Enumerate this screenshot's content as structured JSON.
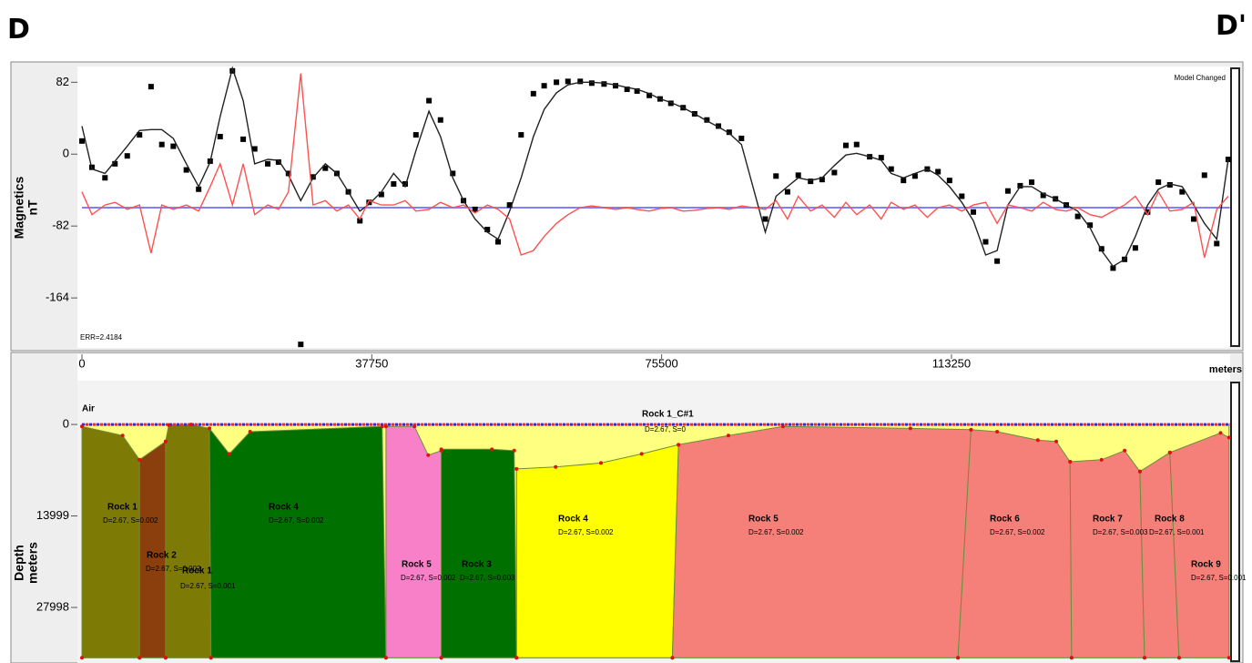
{
  "header": {
    "left": "D",
    "right": "D'"
  },
  "chart_data": [
    {
      "type": "line",
      "ylabel_lines": [
        "Magnetics",
        "nT"
      ],
      "annotations": [
        "Model Changed",
        "ERR=2.4184"
      ],
      "xlim": [
        0,
        149500
      ],
      "ylim": [
        -221,
        100
      ],
      "yticks": [
        82,
        0,
        -82,
        -164
      ],
      "x": [
        0,
        1300,
        3000,
        4300,
        5900,
        7500,
        9000,
        10400,
        11900,
        13600,
        15200,
        16700,
        18000,
        19600,
        21000,
        22500,
        24200,
        25600,
        26900,
        28500,
        30100,
        31700,
        33200,
        34700,
        36200,
        37400,
        39000,
        40600,
        42100,
        43500,
        45200,
        46700,
        48300,
        49700,
        51200,
        52800,
        54200,
        55700,
        57200,
        58800,
        60200,
        61800,
        63300,
        64900,
        66400,
        68000,
        69500,
        71000,
        72300,
        73900,
        75300,
        76700,
        78300,
        79800,
        81400,
        82900,
        84300,
        85900,
        89000,
        90400,
        91900,
        93300,
        94900,
        96400,
        98000,
        99500,
        100900,
        102600,
        104100,
        105400,
        107000,
        108500,
        110100,
        111500,
        113000,
        114600,
        116100,
        117700,
        119200,
        120600,
        122200,
        123700,
        125200,
        126800,
        128200,
        129700,
        131300,
        132800,
        134300,
        135800,
        137200,
        138800,
        140200,
        141700,
        143300,
        144800,
        146200,
        147800,
        149300
      ],
      "reference_line": {
        "value": -61,
        "color": "#7f7fff"
      },
      "series": [
        {
          "style": "points",
          "color": "#000000",
          "values": [
            15,
            -15,
            -27,
            -11,
            -2,
            22,
            77,
            11,
            9,
            -18,
            -40,
            -8,
            20,
            95,
            17,
            6,
            -11,
            -9,
            -22,
            -217,
            -26,
            -16,
            -22,
            -43,
            -76,
            -55,
            -46,
            -34,
            -34,
            22,
            61,
            39,
            -22,
            -53,
            -63,
            -86,
            -100,
            -58,
            22,
            69,
            78,
            82,
            83,
            83,
            81,
            80,
            78,
            74,
            72,
            67,
            63,
            58,
            53,
            46,
            39,
            32,
            25,
            18,
            -74,
            -25,
            -43,
            -24,
            -31,
            -29,
            -21,
            10,
            11,
            -3,
            -4,
            -17,
            -30,
            -25,
            -17,
            -20,
            -30,
            -48,
            -66,
            -100,
            -122,
            -42,
            -36,
            -32,
            -47,
            -51,
            -58,
            -71,
            -81,
            -108,
            -130,
            -120,
            -107,
            -66,
            -32,
            -35,
            -43,
            -74,
            -24,
            -102,
            -6
          ]
        },
        {
          "style": "line",
          "color": "#222222",
          "values": [
            32,
            -17,
            -22,
            -8,
            9,
            27,
            28,
            28,
            18,
            -11,
            -37,
            -9,
            43,
            98,
            61,
            -11,
            -6,
            -7,
            -24,
            -53,
            -27,
            -11,
            -22,
            -43,
            -65,
            -57,
            -43,
            -22,
            -37,
            4,
            49,
            20,
            -27,
            -53,
            -74,
            -89,
            -97,
            -65,
            -27,
            20,
            51,
            70,
            79,
            82,
            82,
            81,
            79,
            76,
            74,
            69,
            63,
            59,
            53,
            46,
            38,
            31,
            24,
            11,
            -89,
            -48,
            -37,
            -27,
            -30,
            -27,
            -13,
            -1,
            1,
            -3,
            -7,
            -22,
            -27,
            -22,
            -17,
            -24,
            -37,
            -55,
            -76,
            -115,
            -110,
            -58,
            -37,
            -37,
            -45,
            -51,
            -58,
            -65,
            -84,
            -110,
            -128,
            -120,
            -94,
            -58,
            -40,
            -34,
            -37,
            -58,
            -79,
            -97,
            -6
          ]
        },
        {
          "style": "line",
          "color": "#ff5050",
          "values": [
            -43,
            -69,
            -58,
            -55,
            -63,
            -58,
            -113,
            -58,
            -63,
            -58,
            -65,
            -37,
            -11,
            -58,
            -11,
            -69,
            -58,
            -63,
            -43,
            92,
            -58,
            -53,
            -65,
            -58,
            -74,
            -53,
            -58,
            -58,
            -53,
            -65,
            -63,
            -55,
            -61,
            -58,
            -67,
            -58,
            -63,
            -74,
            -115,
            -110,
            -94,
            -79,
            -69,
            -61,
            -59,
            -61,
            -63,
            -61,
            -63,
            -65,
            -62,
            -61,
            -65,
            -64,
            -62,
            -61,
            -63,
            -59,
            -63,
            -53,
            -74,
            -48,
            -65,
            -58,
            -72,
            -55,
            -69,
            -58,
            -74,
            -55,
            -63,
            -58,
            -72,
            -61,
            -58,
            -65,
            -58,
            -55,
            -79,
            -58,
            -61,
            -65,
            -55,
            -63,
            -65,
            -61,
            -69,
            -72,
            -65,
            -58,
            -48,
            -69,
            -43,
            -65,
            -63,
            -55,
            -118,
            -63,
            -48
          ]
        }
      ]
    },
    {
      "type": "section",
      "xlabel": "meters",
      "ylabel_lines": [
        "Depth",
        "meters"
      ],
      "air_label": "Air",
      "xlim": [
        0,
        149500
      ],
      "xticks": [
        0,
        37750,
        75500,
        113250
      ],
      "ylim": [
        -6700,
        36500
      ],
      "inverted": true,
      "yticks": [
        0,
        13999,
        27998
      ],
      "bodies": [
        {
          "name": "Rock 1_C#1",
          "props": "D=2.67, S=0",
          "color": "#ffff80",
          "x": [
            0,
            149400,
            149400,
            0
          ],
          "depth": [
            0,
            0,
            35700,
            35700
          ]
        },
        {
          "name": "Rock 1",
          "props": "D=2.67, S=0.002",
          "color": "#7d7a05",
          "x": [
            0,
            5300,
            7500,
            7500,
            0
          ],
          "depth": [
            300,
            1700,
            5400,
            35700,
            35700
          ]
        },
        {
          "name": "Rock 2",
          "props": "D=2.67, S=0.002",
          "color": "#8a3f0c",
          "x": [
            7500,
            10900,
            10900,
            7500
          ],
          "depth": [
            5400,
            2600,
            35700,
            35700
          ]
        },
        {
          "name": "Rock 1",
          "props": "D=2.67, S=0.001",
          "color": "#7d7a05",
          "x": [
            10900,
            11300,
            14200,
            16600,
            16800,
            10900
          ],
          "depth": [
            2600,
            100,
            0,
            600,
            35700,
            35700
          ]
        },
        {
          "name": "Rock 4",
          "props": "D=2.67, S=0.002",
          "color": "#007000",
          "x": [
            16600,
            19200,
            21900,
            39100,
            39600,
            16800
          ],
          "depth": [
            600,
            4500,
            1100,
            300,
            35700,
            35700
          ]
        },
        {
          "name": "Rock 5",
          "props": "D=2.67, S=0.002",
          "color": "#f780c8",
          "x": [
            39600,
            43300,
            45100,
            46800,
            46800,
            39600
          ],
          "depth": [
            300,
            300,
            4700,
            4000,
            35700,
            35700
          ]
        },
        {
          "name": "Rock 3",
          "props": "D=2.67, S=0.003",
          "color": "#007000",
          "x": [
            46800,
            53400,
            56300,
            56600,
            46800
          ],
          "depth": [
            3800,
            3800,
            4000,
            35700,
            35700
          ]
        },
        {
          "name": "Rock 4",
          "props": "D=2.67, S=0.002",
          "color": "#ffff00",
          "x": [
            56600,
            61700,
            67600,
            72900,
            77700,
            76900,
            56600
          ],
          "depth": [
            6800,
            6500,
            5900,
            4500,
            3100,
            35700,
            35700
          ]
        },
        {
          "name": "Rock 5",
          "props": "D=2.67, S=0.002",
          "color": "#f5807a",
          "x": [
            77700,
            84200,
            91300,
            107900,
            115800,
            114100,
            76900
          ],
          "depth": [
            3100,
            1700,
            300,
            600,
            800,
            35700,
            35700
          ]
        },
        {
          "name": "Rock 6",
          "props": "D=2.67, S=0.002",
          "color": "#f5807a",
          "x": [
            115800,
            119200,
            124500,
            126900,
            128700,
            128900,
            114100
          ],
          "depth": [
            800,
            1100,
            2400,
            2600,
            5700,
            35700,
            35700
          ]
        },
        {
          "name": "Rock 7",
          "props": "D=2.67, S=0.003",
          "color": "#f5807a",
          "x": [
            128700,
            132800,
            135800,
            137800,
            138400,
            128900
          ],
          "depth": [
            5700,
            5400,
            4000,
            7200,
            35700,
            35700
          ]
        },
        {
          "name": "Rock 8",
          "props": "D=2.67, S=0.001",
          "color": "#f5807a",
          "x": [
            137800,
            141700,
            142900,
            138400
          ],
          "depth": [
            7200,
            4300,
            35700,
            35700
          ]
        },
        {
          "name": "Rock 9",
          "props": "D=2.67, S=0.001",
          "color": "#f5807a",
          "x": [
            141700,
            148300,
            149400,
            149400,
            142900
          ],
          "depth": [
            4300,
            1300,
            2000,
            35700,
            35700
          ]
        }
      ]
    }
  ]
}
